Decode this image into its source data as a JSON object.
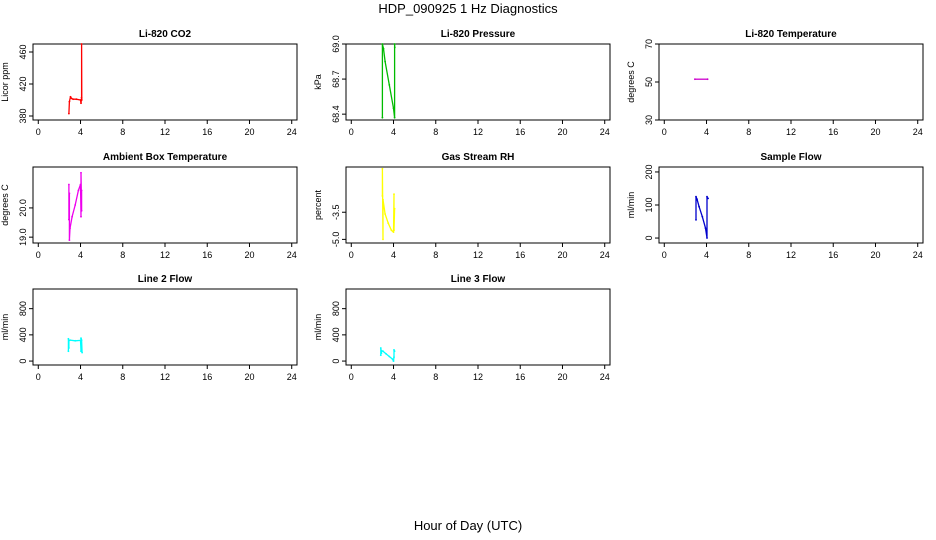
{
  "title": "HDP_090925  1 Hz Diagnostics",
  "xlabel": "Hour of Day (UTC)",
  "chart_data": [
    {
      "type": "line",
      "title": "Li-820 CO2",
      "ylabel": "Licor ppm",
      "color": "#ff0000",
      "xlim": [
        -0.5,
        24.5
      ],
      "ylim": [
        375,
        470
      ],
      "xticks": [
        "0",
        "4",
        "8",
        "12",
        "16",
        "20",
        "24"
      ],
      "yticks": [
        380,
        420,
        460
      ],
      "ytick_labels": [
        "380",
        "420",
        "460"
      ],
      "series": [
        {
          "x": [
            2.9,
            2.95,
            3.05,
            3.15,
            3.3,
            3.6,
            4.0,
            4.05,
            4.1,
            4.1,
            4.12
          ],
          "y": [
            383,
            398,
            404,
            402,
            401,
            401,
            400,
            396,
            403,
            470,
            400
          ]
        }
      ]
    },
    {
      "type": "line",
      "title": "Li-820 Pressure",
      "ylabel": "kPa",
      "color": "#00bb00",
      "xlim": [
        -0.5,
        24.5
      ],
      "ylim": [
        68.35,
        69.0
      ],
      "xticks": [
        "0",
        "4",
        "8",
        "12",
        "16",
        "20",
        "24"
      ],
      "yticks": [
        68.4,
        68.7,
        69.0
      ],
      "ytick_labels": [
        "68.4",
        "68.7",
        "69.0"
      ],
      "series": [
        {
          "x": [
            2.95,
            2.95,
            3.05,
            3.2,
            3.6,
            4.0,
            4.1,
            4.1,
            4.12
          ],
          "y": [
            68.37,
            69.0,
            68.96,
            68.85,
            68.65,
            68.45,
            68.37,
            69.0,
            68.97
          ]
        }
      ]
    },
    {
      "type": "line",
      "title": "Li-820 Temperature",
      "ylabel": "degrees C",
      "color": "#cc00cc",
      "xlim": [
        -0.5,
        24.5
      ],
      "ylim": [
        30,
        70
      ],
      "xticks": [
        "0",
        "4",
        "8",
        "12",
        "16",
        "20",
        "24"
      ],
      "yticks": [
        30,
        50,
        70
      ],
      "ytick_labels": [
        "30",
        "50",
        "70"
      ],
      "series": [
        {
          "x": [
            2.9,
            4.1
          ],
          "y": [
            51.5,
            51.5
          ]
        }
      ]
    },
    {
      "type": "line",
      "title": "Ambient Box Temperature",
      "ylabel": "degrees C",
      "color": "#ee00ee",
      "xlim": [
        -0.5,
        24.5
      ],
      "ylim": [
        18.8,
        21.4
      ],
      "xticks": [
        "0",
        "4",
        "8",
        "12",
        "16",
        "20",
        "24"
      ],
      "yticks": [
        19.0,
        20.0
      ],
      "ytick_labels": [
        "19.0",
        "20.0"
      ],
      "series": [
        {
          "x": [
            2.9,
            2.9,
            2.95,
            2.95,
            3.0,
            3.2,
            3.5,
            3.8,
            4.0,
            4.05,
            4.05,
            4.1,
            4.1
          ],
          "y": [
            20.8,
            19.6,
            20.5,
            18.9,
            19.3,
            19.7,
            20.1,
            20.6,
            20.8,
            19.7,
            21.2,
            19.9,
            20.6
          ]
        }
      ]
    },
    {
      "type": "line",
      "title": "Gas Stream RH",
      "ylabel": "percent",
      "color": "#ffff00",
      "xlim": [
        -0.5,
        24.5
      ],
      "ylim": [
        -5.2,
        -1.0
      ],
      "xticks": [
        "0",
        "4",
        "8",
        "12",
        "16",
        "20",
        "24"
      ],
      "yticks": [
        -5.0,
        -3.5
      ],
      "ytick_labels": [
        "-5.0",
        "-3.5"
      ],
      "series": [
        {
          "x": [
            2.95,
            2.95,
            3.0,
            3.0,
            3.2,
            3.5,
            3.8,
            4.0,
            4.05,
            4.05,
            4.1
          ],
          "y": [
            -2.6,
            -1.1,
            -5.0,
            -2.8,
            -3.6,
            -4.1,
            -4.5,
            -4.6,
            -2.5,
            -4.5,
            -3.3
          ]
        }
      ]
    },
    {
      "type": "line",
      "title": "Sample Flow",
      "ylabel": "ml/min",
      "color": "#0000cc",
      "xlim": [
        -0.5,
        24.5
      ],
      "ylim": [
        -15,
        215
      ],
      "xticks": [
        "0",
        "4",
        "8",
        "12",
        "16",
        "20",
        "24"
      ],
      "yticks": [
        0,
        100,
        200
      ],
      "ytick_labels": [
        "0",
        "100",
        "200"
      ],
      "series": [
        {
          "x": [
            3.0,
            3.0,
            3.1,
            3.3,
            3.6,
            3.9,
            4.05,
            4.05,
            4.1,
            4.15
          ],
          "y": [
            55,
            125,
            118,
            95,
            65,
            30,
            0,
            125,
            120,
            120
          ]
        }
      ]
    },
    {
      "type": "line",
      "title": "Line 2 Flow",
      "ylabel": "ml/min",
      "color": "#00ffff",
      "xlim": [
        -0.5,
        24.5
      ],
      "ylim": [
        -60,
        1100
      ],
      "xticks": [
        "0",
        "4",
        "8",
        "12",
        "16",
        "20",
        "24"
      ],
      "yticks": [
        0,
        400,
        800
      ],
      "ytick_labels": [
        "0",
        "400",
        "800"
      ],
      "series": [
        {
          "x": [
            2.85,
            2.85,
            2.9,
            2.9,
            3.0,
            3.5,
            4.0,
            4.05,
            4.05,
            4.1,
            4.15
          ],
          "y": [
            150,
            340,
            200,
            310,
            320,
            310,
            315,
            150,
            350,
            320,
            130
          ]
        }
      ]
    },
    {
      "type": "line",
      "title": "Line 3 Flow",
      "ylabel": "ml/min",
      "color": "#00ffff",
      "xlim": [
        -0.5,
        24.5
      ],
      "ylim": [
        -60,
        1100
      ],
      "xticks": [
        "0",
        "4",
        "8",
        "12",
        "16",
        "20",
        "24"
      ],
      "yticks": [
        0,
        400,
        800
      ],
      "ytick_labels": [
        "0",
        "400",
        "800"
      ],
      "series": [
        {
          "x": [
            2.8,
            2.8,
            2.85,
            2.85,
            3.0,
            3.3,
            3.6,
            3.9,
            4.0,
            4.05,
            4.05,
            4.1
          ],
          "y": [
            90,
            200,
            120,
            160,
            150,
            110,
            70,
            30,
            0,
            60,
            170,
            150
          ]
        }
      ]
    }
  ]
}
